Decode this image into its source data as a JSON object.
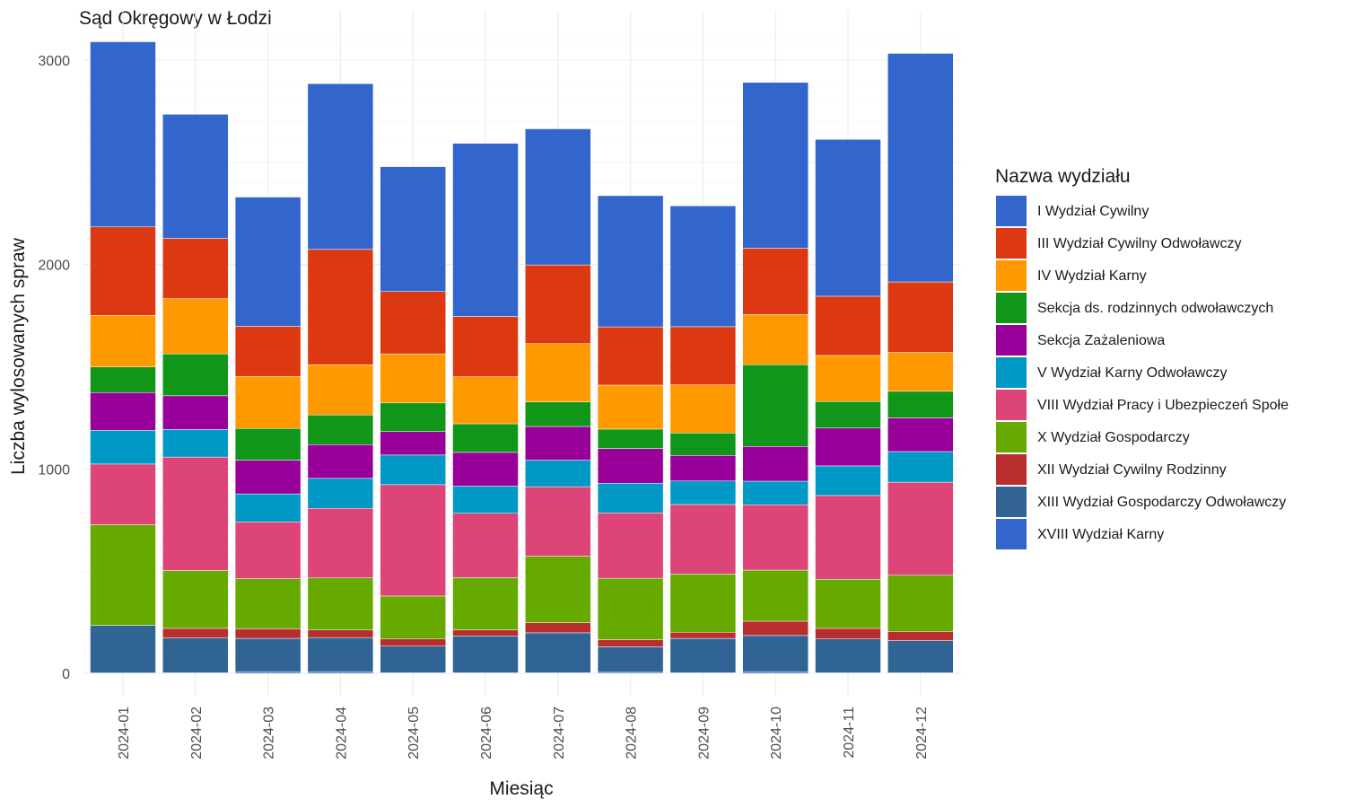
{
  "chart_data": {
    "type": "bar",
    "stacked": true,
    "title": "Sąd Okręgowy w Łodzi",
    "xlabel": "Miesiąc",
    "ylabel": "Liczba wylosowanych spraw",
    "ylim": [
      0,
      3100
    ],
    "yticks": [
      0,
      1000,
      2000,
      3000
    ],
    "grid": true,
    "legend_title": "Nazwa wydziału",
    "legend_position": "right",
    "categories": [
      "2024-01",
      "2024-02",
      "2024-03",
      "2024-04",
      "2024-05",
      "2024-06",
      "2024-07",
      "2024-08",
      "2024-09",
      "2024-10",
      "2024-11",
      "2024-12"
    ],
    "series": [
      {
        "name": "XVIII Wydział Karny",
        "color": "#3366CC",
        "values": [
          2,
          3,
          8,
          8,
          3,
          3,
          3,
          5,
          3,
          8,
          3,
          3
        ]
      },
      {
        "name": "XIII Wydział Gospodarczy Odwoławczy",
        "color": "#2F6494",
        "values": [
          233,
          170,
          163,
          167,
          130,
          180,
          195,
          125,
          168,
          177,
          165,
          157
        ]
      },
      {
        "name": "XII Wydział Cywilny Rodzinny",
        "color": "#B82E2E",
        "values": [
          0,
          47,
          47,
          37,
          35,
          30,
          50,
          35,
          30,
          70,
          52,
          45
        ]
      },
      {
        "name": "X Wydział Gospodarczy",
        "color": "#66AA00",
        "values": [
          492,
          283,
          245,
          255,
          210,
          255,
          325,
          300,
          285,
          250,
          240,
          275
        ]
      },
      {
        "name": "VIII Wydział Pracy i Ubezpieczeń Społe",
        "color": "#DD4477",
        "values": [
          297,
          555,
          278,
          340,
          545,
          315,
          340,
          320,
          340,
          320,
          410,
          455
        ]
      },
      {
        "name": "V Wydział Karny Odwoławczy",
        "color": "#0099C6",
        "values": [
          165,
          135,
          137,
          147,
          145,
          133,
          130,
          145,
          115,
          115,
          145,
          150
        ]
      },
      {
        "name": "Sekcja Zażaleniowa",
        "color": "#990099",
        "values": [
          185,
          165,
          165,
          165,
          115,
          165,
          165,
          170,
          125,
          170,
          185,
          165
        ]
      },
      {
        "name": "Sekcja ds. rodzinnych odwoławczych",
        "color": "#109618",
        "values": [
          125,
          205,
          155,
          145,
          140,
          140,
          120,
          95,
          110,
          400,
          130,
          130
        ]
      },
      {
        "name": "IV Wydział Karny",
        "color": "#FF9900",
        "values": [
          252,
          270,
          255,
          245,
          240,
          230,
          285,
          215,
          235,
          245,
          225,
          190
        ]
      },
      {
        "name": "III Wydział Cywilny Odwoławczy",
        "color": "#DC3912",
        "values": [
          433,
          295,
          245,
          565,
          305,
          295,
          385,
          285,
          285,
          325,
          290,
          345
        ]
      },
      {
        "name": "I Wydział Cywilny",
        "color": "#3366CC",
        "values": [
          906,
          607,
          632,
          811,
          611,
          847,
          666,
          642,
          591,
          811,
          767,
          1118
        ]
      }
    ],
    "legend_entries": [
      {
        "name": "I Wydział Cywilny",
        "color": "#3366CC"
      },
      {
        "name": "III Wydział Cywilny Odwoławczy",
        "color": "#DC3912"
      },
      {
        "name": "IV Wydział Karny",
        "color": "#FF9900"
      },
      {
        "name": "Sekcja ds. rodzinnych odwoławczych",
        "color": "#109618"
      },
      {
        "name": "Sekcja Zażaleniowa",
        "color": "#990099"
      },
      {
        "name": "V Wydział Karny Odwoławczy",
        "color": "#0099C6"
      },
      {
        "name": "VIII Wydział Pracy i Ubezpieczeń Społe",
        "color": "#DD4477"
      },
      {
        "name": "X Wydział Gospodarczy",
        "color": "#66AA00"
      },
      {
        "name": "XII Wydział Cywilny Rodzinny",
        "color": "#B82E2E"
      },
      {
        "name": "XIII Wydział Gospodarczy Odwoławczy",
        "color": "#316395"
      },
      {
        "name": "XVIII Wydział Karny",
        "color": "#3366CC"
      }
    ]
  }
}
